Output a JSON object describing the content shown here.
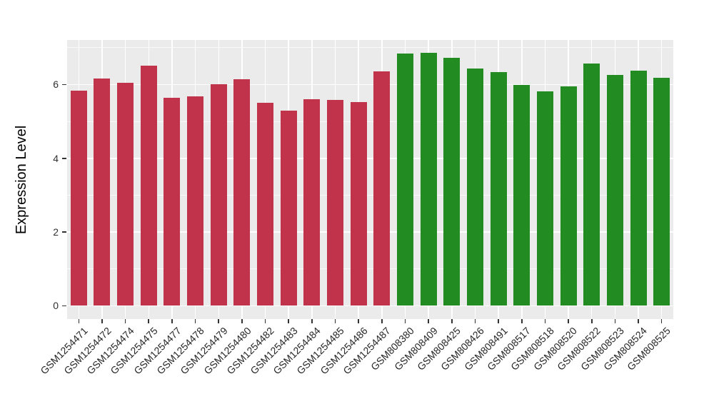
{
  "chart_data": {
    "type": "bar",
    "title": "",
    "xlabel": "",
    "ylabel": "Expression Level",
    "ylim": [
      0,
      7.2
    ],
    "yticks": [
      0,
      2,
      4,
      6
    ],
    "yticks_minor": [
      1,
      3,
      5,
      7
    ],
    "legend_position": "none",
    "grid": true,
    "panel_background": "#EBEBEB",
    "gridline_color": "#FFFFFF",
    "tick_mark_color": "#333333",
    "axis_text_color": "#303030",
    "series": [
      {
        "color": "#C1334B",
        "categories": [
          "GSM1254471",
          "GSM1254472",
          "GSM1254474",
          "GSM1254475",
          "GSM1254477",
          "GSM1254478",
          "GSM1254479",
          "GSM1254480",
          "GSM1254482",
          "GSM1254483",
          "GSM1254484",
          "GSM1254485",
          "GSM1254486",
          "GSM1254487"
        ],
        "values": [
          5.84,
          6.17,
          6.04,
          6.52,
          5.64,
          5.68,
          6.0,
          6.15,
          5.5,
          5.3,
          5.6,
          5.58,
          5.52,
          6.36
        ]
      },
      {
        "color": "#228B22",
        "categories": [
          "GSM808380",
          "GSM808409",
          "GSM808425",
          "GSM808426",
          "GSM808491",
          "GSM808517",
          "GSM808518",
          "GSM808520",
          "GSM808522",
          "GSM808523",
          "GSM808524",
          "GSM808525"
        ],
        "values": [
          6.85,
          6.87,
          6.73,
          6.43,
          6.34,
          5.99,
          5.81,
          5.95,
          6.57,
          6.26,
          6.38,
          6.19
        ]
      }
    ]
  }
}
